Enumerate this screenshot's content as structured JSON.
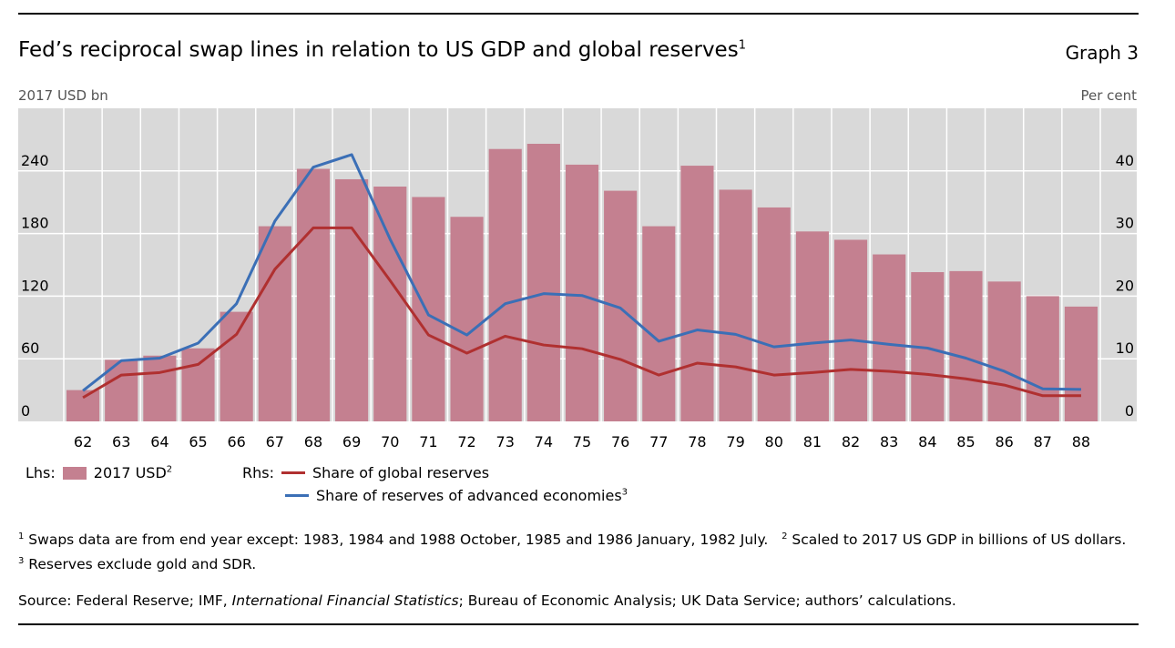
{
  "header": {
    "title": "Fed’s reciprocal swap lines in relation to US GDP and global reserves",
    "title_note": "1",
    "graph_label": "Graph 3"
  },
  "colors": {
    "bars": "#c48090",
    "global": "#b03030",
    "advanced": "#3b6fb6",
    "plot_bg": "#d9d9d9"
  },
  "chart_data": {
    "type": "bar",
    "title": "Fed’s reciprocal swap lines in relation to US GDP and global reserves",
    "ylabel_left": "2017 USD bn",
    "ylabel_right": "Per cent",
    "ylim_left": [
      0,
      300
    ],
    "ylim_right": [
      0,
      50
    ],
    "yticks_left": [
      0,
      60,
      120,
      180,
      240
    ],
    "yticks_right": [
      0,
      10,
      20,
      30,
      40
    ],
    "grid": true,
    "categories": [
      "62",
      "63",
      "64",
      "65",
      "66",
      "67",
      "68",
      "69",
      "70",
      "71",
      "72",
      "73",
      "74",
      "75",
      "76",
      "77",
      "78",
      "79",
      "80",
      "81",
      "82",
      "83",
      "84",
      "85",
      "86",
      "87",
      "88"
    ],
    "series": [
      {
        "name": "2017 USD",
        "axis": "left",
        "type": "bar",
        "values": [
          30,
          59,
          63,
          70,
          105,
          187,
          242,
          232,
          225,
          215,
          196,
          261,
          266,
          246,
          221,
          187,
          245,
          222,
          205,
          182,
          174,
          160,
          143,
          144,
          134,
          120,
          110
        ]
      },
      {
        "name": "Share of global reserves",
        "axis": "right",
        "type": "line",
        "values": [
          3.8,
          7.4,
          7.8,
          9.1,
          13.9,
          24.3,
          30.9,
          30.9,
          22.5,
          13.8,
          10.9,
          13.6,
          12.2,
          11.6,
          9.9,
          7.4,
          9.3,
          8.7,
          7.4,
          7.8,
          8.3,
          8.0,
          7.5,
          6.8,
          5.8,
          4.1,
          4.1
        ]
      },
      {
        "name": "Share of reserves of advanced economies",
        "axis": "right",
        "type": "line",
        "values": [
          4.9,
          9.7,
          10.1,
          12.5,
          18.8,
          32,
          40.6,
          42.6,
          29.1,
          17,
          13.8,
          18.8,
          20.4,
          20.1,
          18.1,
          12.8,
          14.6,
          13.9,
          11.9,
          12.5,
          13,
          12.3,
          11.7,
          10.1,
          8,
          5.2,
          5.1
        ]
      }
    ]
  },
  "legend": {
    "lhs": "Lhs:",
    "rhs": "Rhs:",
    "bars": "2017 USD",
    "bars_note": "2",
    "global": "Share of global reserves",
    "advanced": "Share of reserves of advanced economies",
    "advanced_note": "3"
  },
  "notes": {
    "n1": "1",
    "t1": " Swaps data are from end year except: 1983, 1984 and 1988 October, 1985 and 1986 January, 1982 July.",
    "n2": "2",
    "t2": " Scaled to 2017 US GDP in billions of US dollars.",
    "n3": "3",
    "t3": " Reserves exclude gold and SDR.",
    "source_a": "Source: Federal Reserve; IMF, ",
    "source_b": "International Financial Statistics",
    "source_c": "; Bureau of Economic Analysis; UK Data Service; authors’ calculations."
  }
}
